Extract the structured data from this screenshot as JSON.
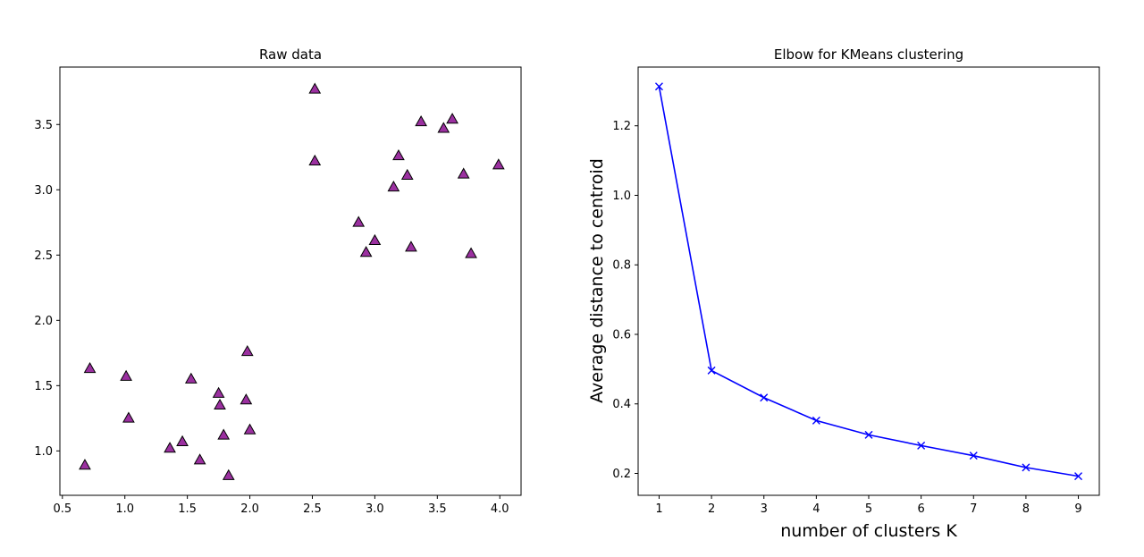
{
  "chart_data": [
    {
      "type": "scatter",
      "title": "Raw data",
      "xlabel": "",
      "ylabel": "",
      "xlim": [
        0.48,
        4.17
      ],
      "ylim": [
        0.66,
        3.94
      ],
      "xticks": [
        0.5,
        1.0,
        1.5,
        2.0,
        2.5,
        3.0,
        3.5,
        4.0
      ],
      "xtick_labels": [
        "0.5",
        "1.0",
        "1.5",
        "2.0",
        "2.5",
        "3.0",
        "3.5",
        "4.0"
      ],
      "yticks": [
        1.0,
        1.5,
        2.0,
        2.5,
        3.0,
        3.5
      ],
      "ytick_labels": [
        "1.0",
        "1.5",
        "2.0",
        "2.5",
        "3.0",
        "3.5"
      ],
      "marker": "triangle",
      "color": "#9b30a0",
      "edge_color": "#000000",
      "x": [
        0.68,
        0.72,
        1.01,
        1.03,
        1.36,
        1.46,
        1.53,
        1.6,
        1.75,
        1.76,
        1.79,
        1.83,
        1.97,
        1.98,
        2.0,
        2.52,
        2.52,
        2.87,
        2.93,
        3.0,
        3.15,
        3.19,
        3.26,
        3.29,
        3.37,
        3.55,
        3.62,
        3.71,
        3.77,
        3.99
      ],
      "y": [
        0.89,
        1.63,
        1.57,
        1.25,
        1.02,
        1.07,
        1.55,
        0.93,
        1.44,
        1.35,
        1.12,
        0.81,
        1.39,
        1.76,
        1.16,
        3.77,
        3.22,
        2.75,
        2.52,
        2.61,
        3.02,
        3.26,
        3.11,
        2.56,
        3.52,
        3.47,
        3.54,
        3.12,
        2.51,
        3.19
      ]
    },
    {
      "type": "line",
      "title": "Elbow for KMeans clustering",
      "xlabel": "number of clusters K",
      "ylabel": "Average distance to centroid",
      "xlim": [
        0.6,
        9.4
      ],
      "ylim": [
        0.137,
        1.369
      ],
      "xticks": [
        1,
        2,
        3,
        4,
        5,
        6,
        7,
        8,
        9
      ],
      "xtick_labels": [
        "1",
        "2",
        "3",
        "4",
        "5",
        "6",
        "7",
        "8",
        "9"
      ],
      "yticks": [
        0.2,
        0.4,
        0.6,
        0.8,
        1.0,
        1.2
      ],
      "ytick_labels": [
        "0.2",
        "0.4",
        "0.6",
        "0.8",
        "1.0",
        "1.2"
      ],
      "marker": "x",
      "color": "#0000ff",
      "x": [
        1,
        2,
        3,
        4,
        5,
        6,
        7,
        8,
        9
      ],
      "y": [
        1.313,
        0.496,
        0.418,
        0.352,
        0.311,
        0.28,
        0.251,
        0.217,
        0.192
      ]
    }
  ]
}
